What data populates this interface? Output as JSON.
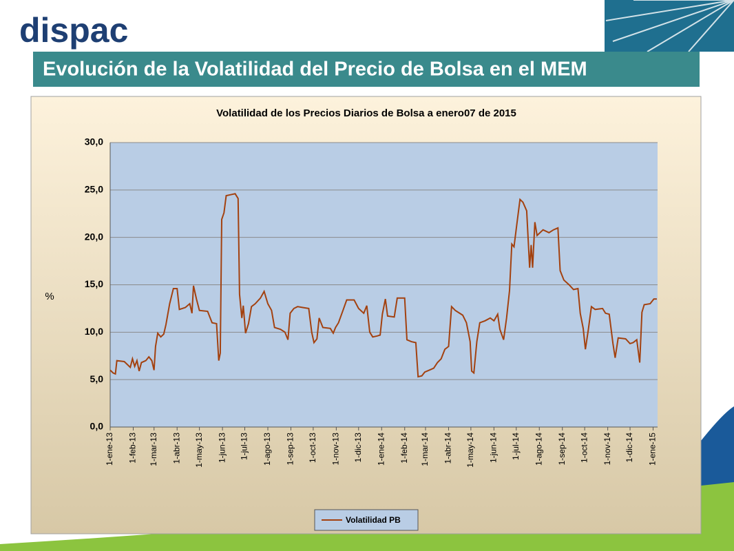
{
  "header": {
    "logo": "dispac",
    "title": "Evolución de la Volatilidad del Precio de Bolsa en el MEM"
  },
  "chart_data": {
    "type": "line",
    "title": "Volatilidad de los Precios  Diarios de Bolsa a enero07 de 2015",
    "y_label": "%",
    "x": [
      "1-ene-13",
      "5-ene-13",
      "8-ene-13",
      "10-ene-13",
      "20-ene-13",
      "28-ene-13",
      "31-ene-13",
      "3-feb-13",
      "6-feb-13",
      "9-feb-13",
      "12-feb-13",
      "18-feb-13",
      "22-feb-13",
      "26-feb-13",
      "1-mar-13",
      "3-mar-13",
      "6-mar-13",
      "10-mar-13",
      "14-mar-13",
      "17-mar-13",
      "22-mar-13",
      "27-mar-13",
      "1-abr-13",
      "4-abr-13",
      "12-abr-13",
      "18-abr-13",
      "21-abr-13",
      "23-abr-13",
      "27-abr-13",
      "1-may-13",
      "12-may-13",
      "18-may-13",
      "24-may-13",
      "27-may-13",
      "29-may-13",
      "31-may-13",
      "3-jun-13",
      "6-jun-13",
      "12-jun-13",
      "18-jun-13",
      "22-jun-13",
      "24-jun-13",
      "27-jun-13",
      "29-jun-13",
      "2-jul-13",
      "6-jul-13",
      "10-jul-13",
      "15-jul-13",
      "22-jul-13",
      "27-jul-13",
      "1-ago-13",
      "6-ago-13",
      "10-ago-13",
      "18-ago-13",
      "24-ago-13",
      "28-ago-13",
      "31-ago-13",
      "5-sep-13",
      "10-sep-13",
      "17-sep-13",
      "25-sep-13",
      "29-sep-13",
      "2-oct-13",
      "6-oct-13",
      "9-oct-13",
      "14-oct-13",
      "24-oct-13",
      "28-oct-13",
      "31-oct-13",
      "4-nov-13",
      "10-nov-13",
      "15-nov-13",
      "25-nov-13",
      "1-dic-13",
      "8-dic-13",
      "12-dic-13",
      "16-dic-13",
      "20-dic-13",
      "26-dic-13",
      "30-dic-13",
      "2-ene-14",
      "6-ene-14",
      "9-ene-14",
      "18-ene-14",
      "22-ene-14",
      "1-feb-14",
      "4-feb-14",
      "10-feb-14",
      "16-feb-14",
      "19-feb-14",
      "24-feb-14",
      "28-feb-14",
      "6-mar-14",
      "12-mar-14",
      "17-mar-14",
      "22-mar-14",
      "27-mar-14",
      "1-abr-14",
      "5-abr-14",
      "10-abr-14",
      "20-abr-14",
      "25-abr-14",
      "30-abr-14",
      "2-may-14",
      "5-may-14",
      "9-may-14",
      "13-may-14",
      "20-may-14",
      "27-may-14",
      "1-jun-14",
      "6-jun-14",
      "9-jun-14",
      "14-jun-14",
      "18-jun-14",
      "22-jun-14",
      "25-jun-14",
      "28-jun-14",
      "2-jul-14",
      "6-jul-14",
      "10-jul-14",
      "15-jul-14",
      "19-jul-14",
      "21-jul-14",
      "23-jul-14",
      "26-jul-14",
      "29-jul-14",
      "6-ago-14",
      "14-ago-14",
      "20-ago-14",
      "26-ago-14",
      "29-ago-14",
      "3-sep-14",
      "10-sep-14",
      "16-sep-14",
      "22-sep-14",
      "25-sep-14",
      "29-sep-14",
      "2-oct-14",
      "6-oct-14",
      "10-oct-14",
      "15-oct-14",
      "25-oct-14",
      "29-oct-14",
      "3-nov-14",
      "8-nov-14",
      "11-nov-14",
      "15-nov-14",
      "25-nov-14",
      "1-dic-14",
      "5-dic-14",
      "10-dic-14",
      "14-dic-14",
      "17-dic-14",
      "20-dic-14",
      "28-dic-14",
      "2-ene-15",
      "6-ene-15"
    ],
    "series": [
      {
        "name": "Volatilidad PB",
        "color": "#a3410f",
        "values": [
          6.0,
          5.7,
          5.6,
          7.0,
          6.9,
          6.3,
          7.2,
          6.4,
          7.0,
          5.9,
          6.8,
          7.0,
          7.4,
          7.0,
          6.0,
          8.5,
          9.9,
          9.5,
          9.8,
          10.8,
          13.0,
          14.6,
          14.6,
          12.4,
          12.6,
          13.0,
          12.0,
          14.9,
          13.5,
          12.3,
          12.2,
          11.0,
          10.9,
          7.0,
          7.8,
          21.9,
          22.6,
          24.4,
          24.5,
          24.6,
          24.1,
          14.0,
          11.5,
          12.8,
          9.9,
          10.9,
          12.7,
          13.0,
          13.6,
          14.3,
          13.0,
          12.3,
          10.5,
          10.3,
          10.0,
          9.2,
          12.0,
          12.5,
          12.7,
          12.6,
          12.5,
          10.0,
          8.9,
          9.3,
          11.5,
          10.5,
          10.4,
          9.9,
          10.5,
          11.0,
          12.3,
          13.4,
          13.4,
          12.5,
          12.0,
          12.8,
          10.0,
          9.5,
          9.6,
          9.7,
          11.9,
          13.5,
          11.7,
          11.6,
          13.6,
          13.6,
          9.2,
          9.0,
          8.9,
          5.3,
          5.4,
          5.8,
          6.0,
          6.2,
          6.8,
          7.2,
          8.2,
          8.5,
          12.7,
          12.3,
          11.8,
          11.0,
          9.0,
          5.9,
          5.7,
          9.0,
          11.0,
          11.2,
          11.5,
          11.2,
          11.9,
          10.3,
          9.2,
          11.5,
          14.4,
          19.3,
          19.0,
          21.5,
          24.0,
          23.7,
          22.8,
          16.8,
          19.2,
          16.8,
          21.6,
          20.2,
          20.8,
          20.5,
          20.8,
          21.0,
          16.5,
          15.5,
          15.0,
          14.5,
          14.6,
          12.0,
          10.4,
          8.2,
          10.3,
          12.7,
          12.4,
          12.5,
          12.0,
          11.9,
          8.8,
          7.3,
          9.4,
          9.3,
          8.8,
          8.9,
          9.2,
          6.8,
          12.1,
          12.9,
          13.0,
          13.5,
          13.5
        ]
      }
    ],
    "xlim": [
      "1-ene-13",
      "7-ene-15"
    ],
    "xticks": [
      "1-ene-13",
      "1-feb-13",
      "1-mar-13",
      "1-abr-13",
      "1-may-13",
      "1-jun-13",
      "1-jul-13",
      "1-ago-13",
      "1-sep-13",
      "1-oct-13",
      "1-nov-13",
      "1-dic-13",
      "1-ene-14",
      "1-feb-14",
      "1-mar-14",
      "1-abr-14",
      "1-may-14",
      "1-jun-14",
      "1-jul-14",
      "1-ago-14",
      "1-sep-14",
      "1-oct-14",
      "1-nov-14",
      "1-dic-14",
      "1-ene-15"
    ],
    "ylim": [
      0,
      30
    ],
    "yticks": [
      {
        "value": 0,
        "label": "0,0"
      },
      {
        "value": 5,
        "label": "5,0"
      },
      {
        "value": 10,
        "label": "10,0"
      },
      {
        "value": 15,
        "label": "15,0"
      },
      {
        "value": 20,
        "label": "20,0"
      },
      {
        "value": 25,
        "label": "25,0"
      },
      {
        "value": 30,
        "label": "30,0"
      }
    ],
    "grid": true,
    "legend": "bottom"
  }
}
